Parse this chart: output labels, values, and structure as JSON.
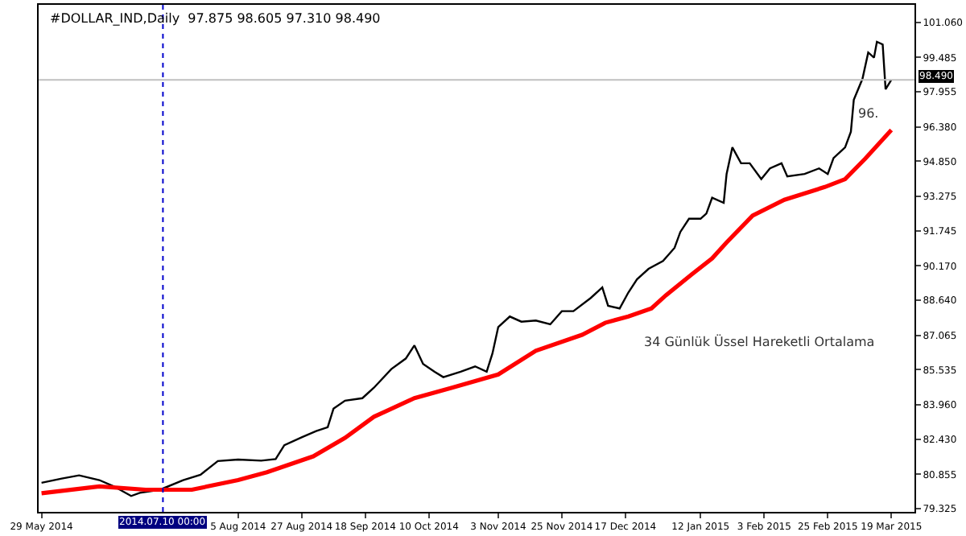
{
  "chart_data": {
    "type": "line",
    "title": "#DOLLAR_IND,Daily  97.875 98.605 97.310 98.490",
    "x": [
      "2014-05-29",
      "2014-06-05",
      "2014-06-11",
      "2014-06-18",
      "2014-06-23",
      "2014-06-29",
      "2014-07-02",
      "2014-07-09",
      "2014-07-17",
      "2014-07-23",
      "2014-07-29",
      "2014-08-05",
      "2014-08-13",
      "2014-08-18",
      "2014-08-21",
      "2014-08-27",
      "2014-09-01",
      "2014-09-05",
      "2014-09-07",
      "2014-09-11",
      "2014-09-17",
      "2014-09-21",
      "2014-09-27",
      "2014-10-02",
      "2014-10-05",
      "2014-10-08",
      "2014-10-12",
      "2014-10-15",
      "2014-10-21",
      "2014-10-26",
      "2014-10-30",
      "2014-11-01",
      "2014-11-03",
      "2014-11-07",
      "2014-11-11",
      "2014-11-16",
      "2014-11-21",
      "2014-11-25",
      "2014-11-29",
      "2014-12-05",
      "2014-12-09",
      "2014-12-11",
      "2014-12-15",
      "2014-12-18",
      "2014-12-21",
      "2014-12-25",
      "2014-12-30",
      "2015-01-03",
      "2015-01-05",
      "2015-01-08",
      "2015-01-12",
      "2015-01-14",
      "2015-01-16",
      "2015-01-20",
      "2015-01-21",
      "2015-01-23",
      "2015-01-26",
      "2015-01-29",
      "2015-02-02",
      "2015-02-05",
      "2015-02-09",
      "2015-02-11",
      "2015-02-17",
      "2015-02-22",
      "2015-02-25",
      "2015-02-27",
      "2015-03-03",
      "2015-03-05",
      "2015-03-06",
      "2015-03-09",
      "2015-03-11",
      "2015-03-13",
      "2015-03-14",
      "2015-03-16",
      "2015-03-17",
      "2015-03-19"
    ],
    "series": [
      {
        "color": "#000000",
        "values": [
          80.48,
          80.67,
          80.81,
          80.6,
          80.32,
          79.89,
          80.03,
          80.17,
          80.6,
          80.84,
          81.45,
          81.52,
          81.47,
          81.54,
          82.16,
          82.51,
          82.79,
          82.96,
          83.79,
          84.15,
          84.26,
          84.73,
          85.56,
          86.03,
          86.62,
          85.79,
          85.44,
          85.2,
          85.44,
          85.68,
          85.44,
          86.26,
          87.44,
          87.91,
          87.68,
          87.73,
          87.56,
          88.15,
          88.15,
          88.74,
          89.21,
          88.39,
          88.27,
          88.98,
          89.57,
          90.04,
          90.39,
          90.98,
          91.69,
          92.28,
          92.28,
          92.51,
          93.22,
          92.99,
          94.28,
          95.47,
          94.76,
          94.76,
          94.05,
          94.53,
          94.76,
          94.17,
          94.28,
          94.53,
          94.28,
          94.99,
          95.47,
          96.17,
          97.59,
          98.53,
          99.71,
          99.48,
          100.19,
          100.07,
          98.07,
          98.49
        ]
      },
      {
        "name": "34 Günlük Üssel Hareketli Ortalama",
        "color": "#ff0000",
        "x": [
          "2014-05-29",
          "2014-06-18",
          "2014-07-04",
          "2014-07-20",
          "2014-08-05",
          "2014-08-15",
          "2014-08-31",
          "2014-09-11",
          "2014-09-21",
          "2014-10-05",
          "2014-10-18",
          "2014-11-03",
          "2014-11-16",
          "2014-12-02",
          "2014-12-10",
          "2014-12-18",
          "2014-12-26",
          "2014-12-31",
          "2015-01-09",
          "2015-01-16",
          "2015-01-21",
          "2015-01-30",
          "2015-02-10",
          "2015-02-24",
          "2015-03-03",
          "2015-03-10",
          "2015-03-19"
        ],
        "values": [
          80.01,
          80.32,
          80.17,
          80.17,
          80.6,
          80.95,
          81.66,
          82.49,
          83.43,
          84.26,
          84.73,
          85.32,
          86.38,
          87.09,
          87.63,
          87.91,
          88.27,
          88.86,
          89.8,
          90.51,
          91.22,
          92.42,
          93.13,
          93.7,
          94.05,
          94.97,
          96.25
        ]
      }
    ],
    "annotations": [
      {
        "text": "96.",
        "x": "2015-03-19",
        "y": 96.25
      }
    ],
    "ref_lines": [
      {
        "axis": "y",
        "value": 98.49,
        "label": "98.490",
        "color": "#c0c0c0",
        "line_style": "solid"
      },
      {
        "axis": "x",
        "value": "2014-07-10",
        "label": "2014.07.10 00:00",
        "color": "#0000cc",
        "line_style": "dotted"
      }
    ],
    "xlim": [
      "2014-05-28",
      "2015-03-27"
    ],
    "xticks": [
      {
        "value": "2014-05-29",
        "label": "29 May 2014"
      },
      {
        "value": "2014-08-05",
        "label": "5 Aug 2014"
      },
      {
        "value": "2014-08-27",
        "label": "27 Aug 2014"
      },
      {
        "value": "2014-09-18",
        "label": "18 Sep 2014"
      },
      {
        "value": "2014-10-10",
        "label": "10 Oct 2014"
      },
      {
        "value": "2014-11-03",
        "label": "3 Nov 2014"
      },
      {
        "value": "2014-11-25",
        "label": "25 Nov 2014"
      },
      {
        "value": "2014-12-17",
        "label": "17 Dec 2014"
      },
      {
        "value": "2015-01-12",
        "label": "12 Jan 2015"
      },
      {
        "value": "2015-02-03",
        "label": "3 Feb 2015"
      },
      {
        "value": "2015-02-25",
        "label": "25 Feb 2015"
      },
      {
        "value": "2015-03-19",
        "label": "19 Mar 2015"
      }
    ],
    "ylim": [
      79.18,
      101.84
    ],
    "yticks": [
      {
        "value": 101.06,
        "label": "101.060"
      },
      {
        "value": 99.485,
        "label": "99.485"
      },
      {
        "value": 97.955,
        "label": "97.955"
      },
      {
        "value": 96.38,
        "label": "96.380"
      },
      {
        "value": 94.85,
        "label": "94.850"
      },
      {
        "value": 93.275,
        "label": "93.275"
      },
      {
        "value": 91.745,
        "label": "91.745"
      },
      {
        "value": 90.17,
        "label": "90.170"
      },
      {
        "value": 88.64,
        "label": "88.640"
      },
      {
        "value": 87.065,
        "label": "87.065"
      },
      {
        "value": 85.535,
        "label": "85.535"
      },
      {
        "value": 83.96,
        "label": "83.960"
      },
      {
        "value": 82.43,
        "label": "82.430"
      },
      {
        "value": 80.855,
        "label": "80.855"
      },
      {
        "value": 79.325,
        "label": "79.325"
      }
    ],
    "legend": false,
    "marker": "none",
    "line_style": "solid"
  }
}
